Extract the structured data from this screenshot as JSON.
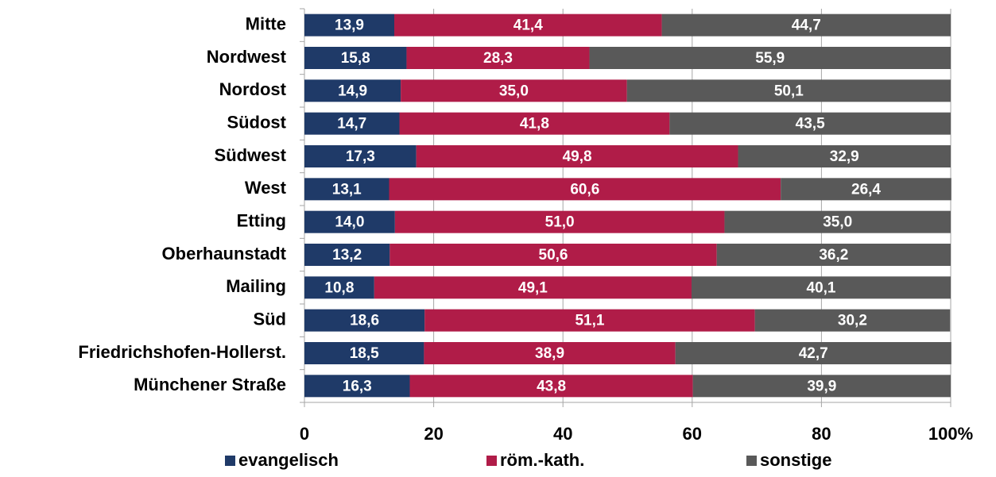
{
  "chart_data": {
    "type": "stacked_barh",
    "categories": [
      "Mitte",
      "Nordwest",
      "Nordost",
      "Südost",
      "Südwest",
      "West",
      "Etting",
      "Oberhaunstadt",
      "Mailing",
      "Süd",
      "Friedrichshofen-Hollerst.",
      "Münchener Straße"
    ],
    "series": [
      {
        "name": "evangelisch",
        "color": "#1f3a68",
        "values": [
          13.9,
          15.8,
          14.9,
          14.7,
          17.3,
          13.1,
          14.0,
          13.2,
          10.8,
          18.6,
          18.5,
          16.3
        ],
        "value_labels": [
          "13,9",
          "15,8",
          "14,9",
          "14,7",
          "17,3",
          "13,1",
          "14,0",
          "13,2",
          "10,8",
          "18,6",
          "18,5",
          "16,3"
        ]
      },
      {
        "name": "röm.-kath.",
        "color": "#b01c48",
        "values": [
          41.4,
          28.3,
          35.0,
          41.8,
          49.8,
          60.6,
          51.0,
          50.6,
          49.1,
          51.1,
          38.9,
          43.8
        ],
        "value_labels": [
          "41,4",
          "28,3",
          "35,0",
          "41,8",
          "49,8",
          "60,6",
          "51,0",
          "50,6",
          "49,1",
          "51,1",
          "38,9",
          "43,8"
        ]
      },
      {
        "name": "sonstige",
        "color": "#595959",
        "values": [
          44.7,
          55.9,
          50.1,
          43.5,
          32.9,
          26.4,
          35.0,
          36.2,
          40.1,
          30.2,
          42.7,
          39.9
        ],
        "value_labels": [
          "44,7",
          "55,9",
          "50,1",
          "43,5",
          "32,9",
          "26,4",
          "35,0",
          "36,2",
          "40,1",
          "30,2",
          "42,7",
          "39,9"
        ]
      }
    ],
    "xlim": [
      0,
      100
    ],
    "xticks": [
      0,
      20,
      40,
      60,
      80,
      {
        "value": 100,
        "label": "100%"
      }
    ],
    "grid": true,
    "legend": "bottom"
  }
}
